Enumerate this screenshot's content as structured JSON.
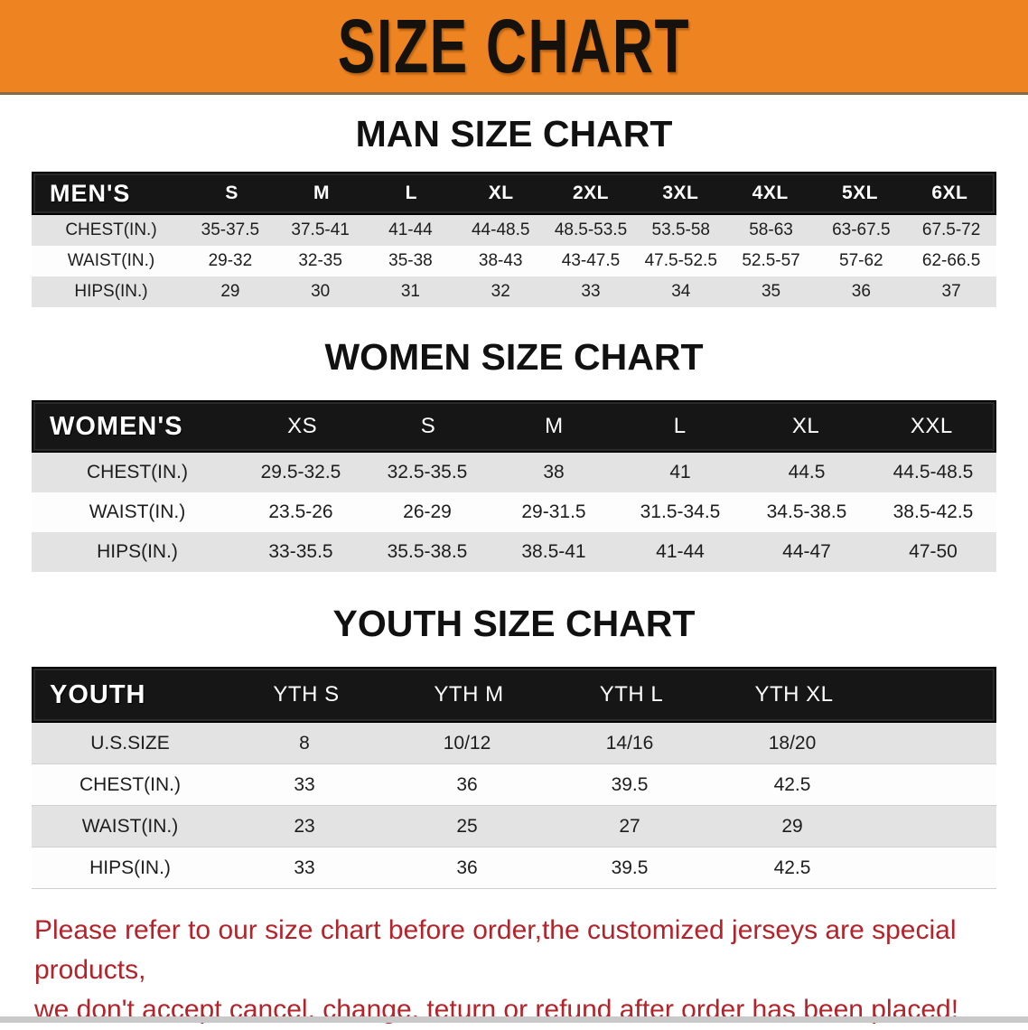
{
  "banner": {
    "title": "SIZE CHART",
    "bg_color": "#ED8321",
    "text_color": "#15120e"
  },
  "sections": {
    "man": {
      "title": "MAN SIZE CHART",
      "header_label": "MEN'S",
      "sizes": [
        "S",
        "M",
        "L",
        "XL",
        "2XL",
        "3XL",
        "4XL",
        "5XL",
        "6XL"
      ],
      "rows": [
        {
          "label": "CHEST(IN.)",
          "values": [
            "35-37.5",
            "37.5-41",
            "41-44",
            "44-48.5",
            "48.5-53.5",
            "53.5-58",
            "58-63",
            "63-67.5",
            "67.5-72"
          ]
        },
        {
          "label": "WAIST(IN.)",
          "values": [
            "29-32",
            "32-35",
            "35-38",
            "38-43",
            "43-47.5",
            "47.5-52.5",
            "52.5-57",
            "57-62",
            "62-66.5"
          ]
        },
        {
          "label": "HIPS(IN.)",
          "values": [
            "29",
            "30",
            "31",
            "32",
            "33",
            "34",
            "35",
            "36",
            "37"
          ]
        }
      ]
    },
    "women": {
      "title": "WOMEN SIZE CHART",
      "header_label": "WOMEN'S",
      "sizes": [
        "XS",
        "S",
        "M",
        "L",
        "XL",
        "XXL"
      ],
      "rows": [
        {
          "label": "CHEST(IN.)",
          "values": [
            "29.5-32.5",
            "32.5-35.5",
            "38",
            "41",
            "44.5",
            "44.5-48.5"
          ]
        },
        {
          "label": "WAIST(IN.)",
          "values": [
            "23.5-26",
            "26-29",
            "29-31.5",
            "31.5-34.5",
            "34.5-38.5",
            "38.5-42.5"
          ]
        },
        {
          "label": "HIPS(IN.)",
          "values": [
            "33-35.5",
            "35.5-38.5",
            "38.5-41",
            "41-44",
            "44-47",
            "47-50"
          ]
        }
      ]
    },
    "youth": {
      "title": "YOUTH SIZE CHART",
      "header_label": "YOUTH",
      "sizes": [
        "YTH S",
        "YTH M",
        "YTH L",
        "YTH XL"
      ],
      "rows": [
        {
          "label": "U.S.SIZE",
          "values": [
            "8",
            "10/12",
            "14/16",
            "18/20"
          ]
        },
        {
          "label": "CHEST(IN.)",
          "values": [
            "33",
            "36",
            "39.5",
            "42.5"
          ]
        },
        {
          "label": "WAIST(IN.)",
          "values": [
            "23",
            "25",
            "27",
            "29"
          ]
        },
        {
          "label": "HIPS(IN.)",
          "values": [
            "33",
            "36",
            "39.5",
            "42.5"
          ]
        }
      ]
    }
  },
  "disclaimer": {
    "lines": [
      "Please refer to our size chart before order,the customized jerseys are special products,",
      "we don't accept cancel, change, teturn or refund after order has been placed!"
    ],
    "color": "#b4232a"
  },
  "colors": {
    "banner_orange": "#ED8321",
    "table_header_black": "#161616",
    "row_stripe_gray": "#e3e3e3",
    "disclaimer_red": "#b4232a"
  }
}
